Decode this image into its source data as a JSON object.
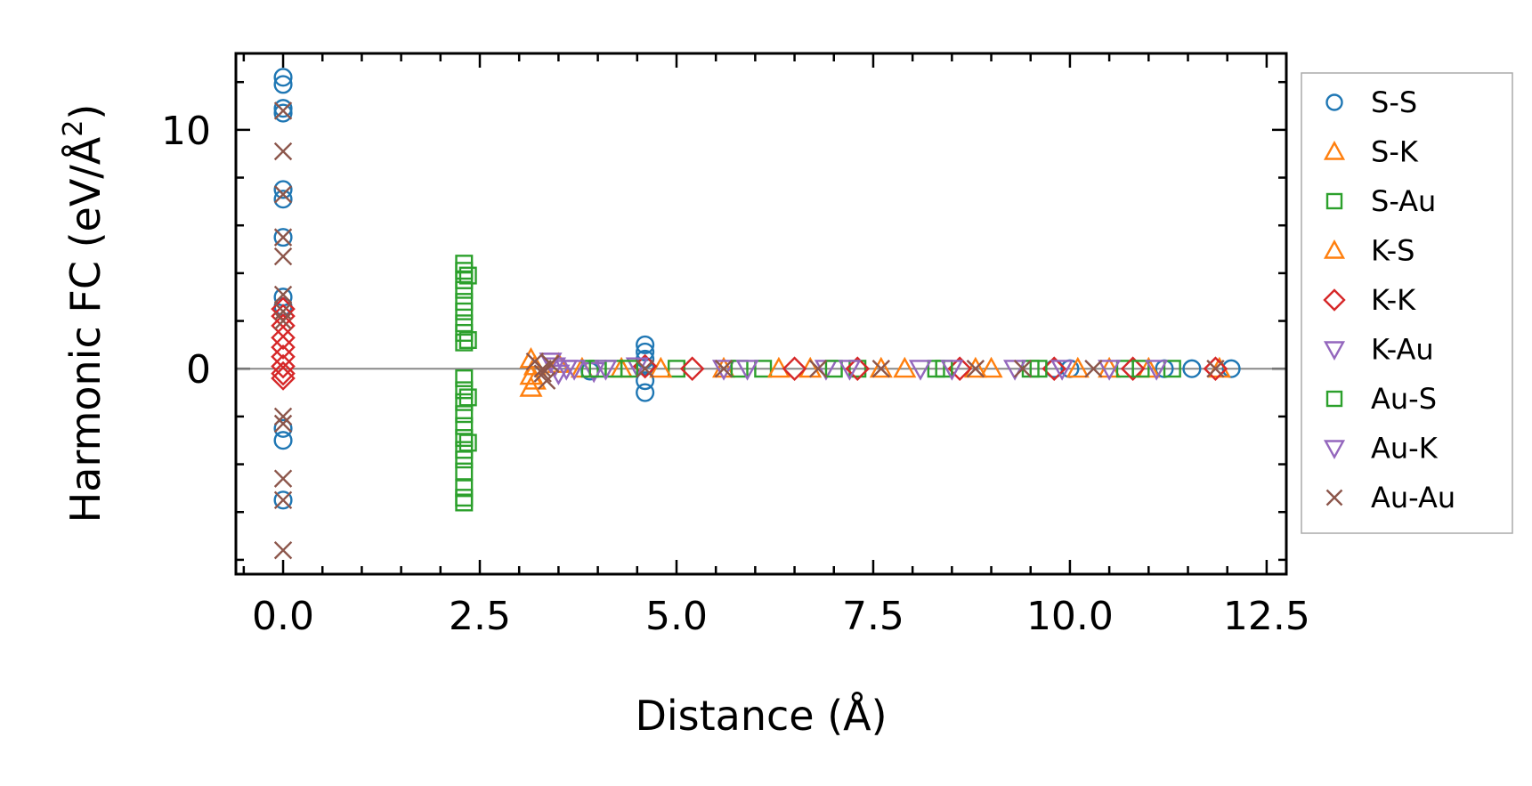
{
  "chart_data": {
    "type": "scatter",
    "xlabel": "Distance (Å)",
    "ylabel_prefix": "Harmonic FC (eV/Å",
    "ylabel_sup": "2",
    "ylabel_suffix": ")",
    "xlim": [
      -0.6,
      12.75
    ],
    "ylim": [
      -8.6,
      13.2
    ],
    "xticks": [
      0.0,
      2.5,
      5.0,
      7.5,
      10.0,
      12.5
    ],
    "xtick_labels": [
      "0.0",
      "2.5",
      "5.0",
      "7.5",
      "10.0",
      "12.5"
    ],
    "yticks": [
      0,
      10
    ],
    "ytick_labels": [
      "0",
      "10"
    ],
    "x_minor_step": 0.5,
    "y_minor_step": 2,
    "zero_line": true,
    "legend_position": "right",
    "series": [
      {
        "name": "S-S",
        "marker": "circle",
        "color": "#1f77b4",
        "points": [
          [
            0,
            12.2
          ],
          [
            0,
            11.9
          ],
          [
            0,
            10.9
          ],
          [
            0,
            10.7
          ],
          [
            0,
            7.5
          ],
          [
            0,
            7.1
          ],
          [
            0,
            5.5
          ],
          [
            0,
            3.0
          ],
          [
            0,
            2.6
          ],
          [
            0,
            -2.5
          ],
          [
            0,
            -3.0
          ],
          [
            0,
            -5.5
          ],
          [
            4.6,
            1.0
          ],
          [
            4.6,
            0.7
          ],
          [
            4.6,
            0.4
          ],
          [
            4.6,
            0.1
          ],
          [
            4.6,
            -0.5
          ],
          [
            4.6,
            -1.0
          ],
          [
            3.9,
            -0.1
          ],
          [
            11.2,
            0.0
          ],
          [
            11.55,
            0.0
          ],
          [
            12.05,
            0.0
          ],
          [
            10.0,
            0.0
          ],
          [
            9.8,
            0.0
          ]
        ]
      },
      {
        "name": "S-K",
        "marker": "triangle-up",
        "color": "#ff7f0e",
        "points": [
          [
            3.15,
            0.4
          ],
          [
            3.15,
            -0.3
          ],
          [
            3.15,
            -0.8
          ],
          [
            3.2,
            0.1
          ],
          [
            3.8,
            0.0
          ],
          [
            4.3,
            0.0
          ],
          [
            5.6,
            0.0
          ],
          [
            6.7,
            0.0
          ],
          [
            7.9,
            0.0
          ],
          [
            9.0,
            0.0
          ],
          [
            10.5,
            0.0
          ],
          [
            11.9,
            0.0
          ]
        ]
      },
      {
        "name": "S-Au",
        "marker": "square",
        "color": "#2ca02c",
        "points": [
          [
            2.3,
            4.4
          ],
          [
            2.3,
            4.1
          ],
          [
            2.3,
            3.7
          ],
          [
            2.3,
            3.3
          ],
          [
            2.3,
            2.8
          ],
          [
            2.3,
            2.4
          ],
          [
            2.3,
            1.9
          ],
          [
            2.3,
            1.5
          ],
          [
            2.3,
            1.1
          ],
          [
            2.3,
            -0.4
          ],
          [
            2.3,
            -0.9
          ],
          [
            2.3,
            -1.4
          ],
          [
            2.3,
            -1.9
          ],
          [
            2.3,
            -2.4
          ],
          [
            2.3,
            -2.9
          ],
          [
            2.3,
            -3.4
          ],
          [
            2.3,
            -3.8
          ],
          [
            2.3,
            -4.3
          ],
          [
            2.3,
            -5.0
          ],
          [
            2.3,
            -5.4
          ],
          [
            2.3,
            -5.6
          ],
          [
            3.9,
            0.0
          ],
          [
            4.2,
            0.0
          ],
          [
            5.0,
            0.0
          ],
          [
            6.1,
            0.0
          ],
          [
            7.3,
            0.0
          ],
          [
            8.3,
            0.0
          ],
          [
            9.5,
            0.0
          ],
          [
            10.7,
            0.0
          ],
          [
            11.3,
            0.0
          ]
        ]
      },
      {
        "name": "K-S",
        "marker": "triangle-up",
        "color": "#ff7f0e",
        "points": [
          [
            3.2,
            -0.5
          ],
          [
            3.5,
            0.2
          ],
          [
            4.8,
            0.0
          ],
          [
            6.3,
            0.0
          ],
          [
            7.6,
            0.0
          ],
          [
            8.8,
            0.0
          ],
          [
            10.1,
            0.0
          ],
          [
            11.0,
            0.0
          ]
        ]
      },
      {
        "name": "K-K",
        "marker": "diamond",
        "color": "#d62728",
        "points": [
          [
            0,
            2.5
          ],
          [
            0,
            2.2
          ],
          [
            0,
            1.8
          ],
          [
            0,
            1.3
          ],
          [
            0,
            0.9
          ],
          [
            0,
            0.5
          ],
          [
            0,
            0.1
          ],
          [
            0,
            -0.2
          ],
          [
            0,
            -0.4
          ],
          [
            4.6,
            0.1
          ],
          [
            5.2,
            0.0
          ],
          [
            6.5,
            0.0
          ],
          [
            7.3,
            0.0
          ],
          [
            8.6,
            0.0
          ],
          [
            9.8,
            0.0
          ],
          [
            10.8,
            0.0
          ],
          [
            11.85,
            0.0
          ]
        ]
      },
      {
        "name": "K-Au",
        "marker": "triangle-down",
        "color": "#9467bd",
        "points": [
          [
            3.4,
            0.3
          ],
          [
            3.5,
            -0.2
          ],
          [
            3.7,
            0.0
          ],
          [
            3.95,
            -0.1
          ],
          [
            4.5,
            0.1
          ],
          [
            5.6,
            0.0
          ],
          [
            6.9,
            0.0
          ],
          [
            8.1,
            0.0
          ],
          [
            9.3,
            0.0
          ],
          [
            10.5,
            0.0
          ]
        ]
      },
      {
        "name": "Au-S",
        "marker": "square",
        "color": "#2ca02c",
        "points": [
          [
            2.35,
            3.9
          ],
          [
            2.35,
            1.2
          ],
          [
            2.35,
            -1.2
          ],
          [
            2.35,
            -3.1
          ],
          [
            4.0,
            0.0
          ],
          [
            4.4,
            0.0
          ],
          [
            5.8,
            0.0
          ],
          [
            7.0,
            0.0
          ],
          [
            8.4,
            0.0
          ],
          [
            9.6,
            0.0
          ],
          [
            10.9,
            0.0
          ]
        ]
      },
      {
        "name": "Au-K",
        "marker": "triangle-down",
        "color": "#9467bd",
        "points": [
          [
            3.45,
            0.1
          ],
          [
            3.6,
            0.0
          ],
          [
            4.1,
            0.0
          ],
          [
            5.9,
            0.0
          ],
          [
            7.2,
            0.0
          ],
          [
            8.5,
            0.0
          ],
          [
            9.9,
            0.0
          ],
          [
            11.1,
            0.0
          ]
        ]
      },
      {
        "name": "Au-Au",
        "marker": "x",
        "color": "#8c564b",
        "points": [
          [
            0,
            10.8
          ],
          [
            0,
            9.1
          ],
          [
            0,
            7.3
          ],
          [
            0,
            5.5
          ],
          [
            0,
            4.7
          ],
          [
            0,
            3.1
          ],
          [
            0,
            2.4
          ],
          [
            0,
            2.0
          ],
          [
            0,
            -2.0
          ],
          [
            0,
            -2.3
          ],
          [
            0,
            -4.6
          ],
          [
            0,
            -5.5
          ],
          [
            0,
            -7.6
          ],
          [
            3.2,
            0.3
          ],
          [
            3.3,
            -0.2
          ],
          [
            3.3,
            0.0
          ],
          [
            3.35,
            -0.5
          ],
          [
            3.4,
            0.2
          ],
          [
            4.6,
            0.0
          ],
          [
            5.6,
            0.0
          ],
          [
            6.8,
            0.0
          ],
          [
            7.6,
            0.0
          ],
          [
            8.8,
            0.0
          ],
          [
            9.4,
            0.0
          ],
          [
            10.3,
            0.0
          ],
          [
            11.85,
            0.0
          ]
        ]
      }
    ]
  }
}
